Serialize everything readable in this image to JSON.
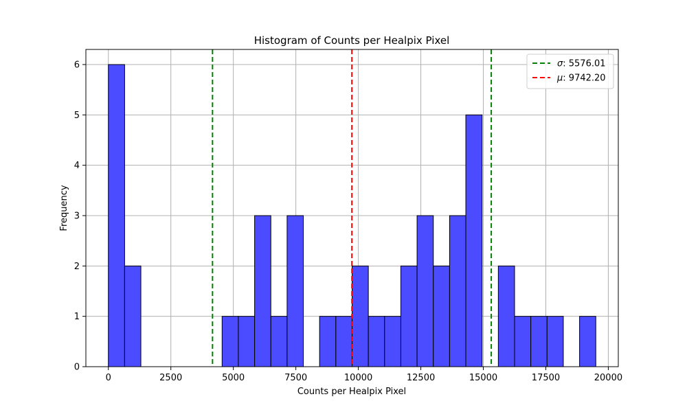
{
  "chart_data": {
    "type": "bar",
    "title": "Histogram of Counts per Healpix Pixel",
    "xlabel": "Counts per Healpix Pixel",
    "ylabel": "Frequency",
    "xlim": [
      -900,
      20400
    ],
    "ylim": [
      0,
      6.3
    ],
    "xticks": [
      0,
      2500,
      5000,
      7500,
      10000,
      12500,
      15000,
      17500,
      20000
    ],
    "yticks": [
      0,
      1,
      2,
      3,
      4,
      5,
      6
    ],
    "grid": true,
    "bar_color": "#4b4bff",
    "bar_edge_color": "#000000",
    "bins": [
      {
        "x0": 0,
        "x1": 650,
        "value": 6
      },
      {
        "x0": 650,
        "x1": 1300,
        "value": 2
      },
      {
        "x0": 1300,
        "x1": 1950,
        "value": 0
      },
      {
        "x0": 1950,
        "x1": 2600,
        "value": 0
      },
      {
        "x0": 2600,
        "x1": 3250,
        "value": 0
      },
      {
        "x0": 3250,
        "x1": 3900,
        "value": 0
      },
      {
        "x0": 3900,
        "x1": 4550,
        "value": 0
      },
      {
        "x0": 4550,
        "x1": 5200,
        "value": 1
      },
      {
        "x0": 5200,
        "x1": 5850,
        "value": 1
      },
      {
        "x0": 5850,
        "x1": 6500,
        "value": 3
      },
      {
        "x0": 6500,
        "x1": 7150,
        "value": 1
      },
      {
        "x0": 7150,
        "x1": 7800,
        "value": 3
      },
      {
        "x0": 7800,
        "x1": 8450,
        "value": 0
      },
      {
        "x0": 8450,
        "x1": 9100,
        "value": 1
      },
      {
        "x0": 9100,
        "x1": 9750,
        "value": 1
      },
      {
        "x0": 9750,
        "x1": 10400,
        "value": 2
      },
      {
        "x0": 10400,
        "x1": 11050,
        "value": 1
      },
      {
        "x0": 11050,
        "x1": 11700,
        "value": 1
      },
      {
        "x0": 11700,
        "x1": 12350,
        "value": 2
      },
      {
        "x0": 12350,
        "x1": 13000,
        "value": 3
      },
      {
        "x0": 13000,
        "x1": 13650,
        "value": 2
      },
      {
        "x0": 13650,
        "x1": 14300,
        "value": 3
      },
      {
        "x0": 14300,
        "x1": 14950,
        "value": 5
      },
      {
        "x0": 14950,
        "x1": 15600,
        "value": 0
      },
      {
        "x0": 15600,
        "x1": 16250,
        "value": 2
      },
      {
        "x0": 16250,
        "x1": 16900,
        "value": 1
      },
      {
        "x0": 16900,
        "x1": 17550,
        "value": 1
      },
      {
        "x0": 17550,
        "x1": 18200,
        "value": 1
      },
      {
        "x0": 18200,
        "x1": 18850,
        "value": 0
      },
      {
        "x0": 18850,
        "x1": 19500,
        "value": 1
      }
    ],
    "vlines": [
      {
        "x": 9742.2,
        "color": "#ff0000",
        "style": "dashed"
      },
      {
        "x": 4166.19,
        "color": "#008000",
        "style": "dashed"
      },
      {
        "x": 15318.21,
        "color": "#008000",
        "style": "dashed"
      }
    ],
    "legend": {
      "position": "top-right",
      "entries": [
        {
          "symbol": "σ",
          "text": ": 5576.01",
          "color": "#008000"
        },
        {
          "symbol": "μ",
          "text": ": 9742.20",
          "color": "#ff0000"
        }
      ]
    }
  }
}
